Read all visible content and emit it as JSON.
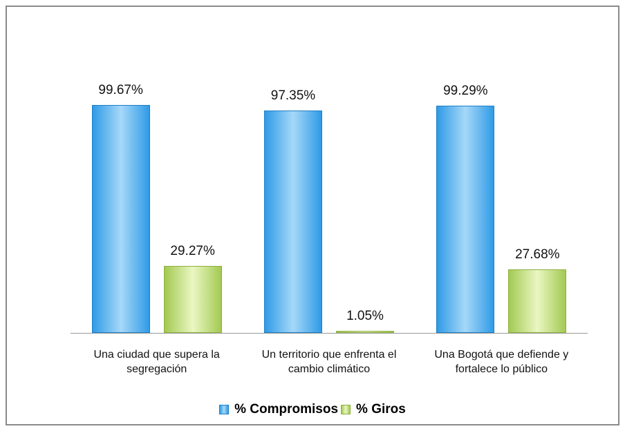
{
  "chart_data": {
    "type": "bar",
    "categories": [
      "Una ciudad que supera la segregación",
      "Un territorio que enfrenta el cambio climático",
      "Una Bogotá que defiende y fortalece lo público"
    ],
    "series": [
      {
        "name": "% Compromisos",
        "color": "#4aaeee",
        "values": [
          99.67,
          97.35,
          99.29
        ],
        "value_labels": [
          "99.67%",
          "97.35%",
          "99.29%"
        ]
      },
      {
        "name": "% Giros",
        "color": "#b5d66a",
        "values": [
          29.27,
          1.05,
          27.68
        ],
        "value_labels": [
          "29.27%",
          "1.05%",
          "27.68%"
        ]
      }
    ],
    "ylim": [
      0,
      100
    ]
  }
}
